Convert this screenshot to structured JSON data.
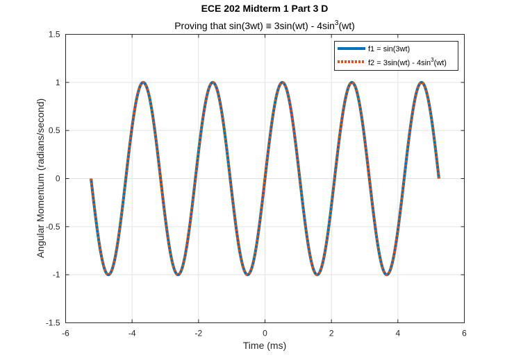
{
  "chart_data": {
    "type": "line",
    "title": "ECE 202 Midterm 1 Part 3 D",
    "subtitle_parts": [
      "Proving that sin(3wt) ",
      "≡",
      " 3sin(wt) - 4sin",
      "3",
      "(wt)"
    ],
    "xlabel": "Time (ms)",
    "ylabel": "Angular Momentum (radians/second)",
    "xlim": [
      -6,
      6
    ],
    "ylim": [
      -1.5,
      1.5
    ],
    "x_ticks": [
      -6,
      -4,
      -2,
      0,
      2,
      4,
      6
    ],
    "y_ticks": [
      -1.5,
      -1,
      -0.5,
      0,
      0.5,
      1,
      1.5
    ],
    "x_tick_labels": [
      "-6",
      "-4",
      "-2",
      "0",
      "2",
      "4",
      "6"
    ],
    "y_tick_labels": [
      "-1.5",
      "-1",
      "-0.5",
      "0",
      "0.5",
      "1",
      "1.5"
    ],
    "grid": true,
    "legend_position": "top-right",
    "x_range": [
      -5.236,
      5.236
    ],
    "series": [
      {
        "name": "f1 = sin(3wt)",
        "formula": "sin(3wt)",
        "color": "#0072BD",
        "style": "solid"
      },
      {
        "name_parts": [
          "f2 = 3sin(wt) - 4sin",
          "3",
          "(wt)"
        ],
        "formula": "3sin(wt) - 4sin^3(wt)",
        "color": "#D95319",
        "style": "dotted"
      }
    ]
  }
}
